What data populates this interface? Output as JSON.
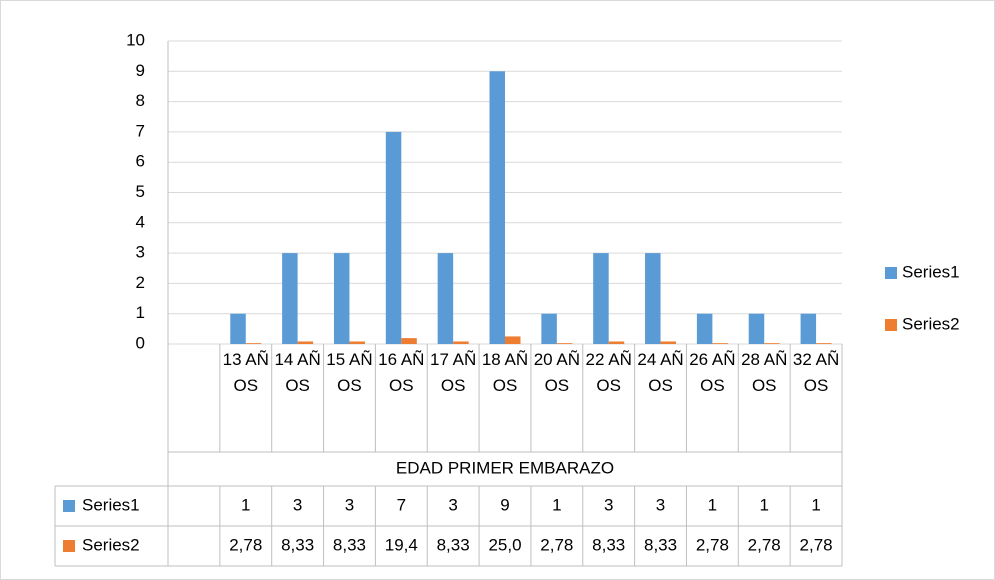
{
  "chart_data": {
    "type": "bar",
    "x_label": "EDAD PRIMER EMBARAZO",
    "categories": [
      null,
      "13 AÑOS",
      "14 AÑOS",
      "15 AÑOS",
      "16 AÑOS",
      "17 AÑOS",
      "18 AÑOS",
      "20 AÑOS",
      "22 AÑOS",
      "24 AÑOS",
      "26 AÑOS",
      "28 AÑOS",
      "32 AÑOS"
    ],
    "series": [
      {
        "name": "Series1",
        "color": "#5b9bd5",
        "values": [
          null,
          1,
          3,
          3,
          7,
          3,
          9,
          1,
          3,
          3,
          1,
          1,
          1
        ]
      },
      {
        "name": "Series2",
        "color": "#ed7d31",
        "values": [
          null,
          0.0278,
          0.0833,
          0.0833,
          0.194,
          0.0833,
          0.25,
          0.0278,
          0.0833,
          0.0833,
          0.0278,
          0.0278,
          0.0278
        ],
        "value_labels": [
          null,
          "2,78",
          "8,33",
          "8,33",
          "19,4",
          "8,33",
          "25,0",
          "2,78",
          "8,33",
          "8,33",
          "2,78",
          "2,78",
          "2,78"
        ]
      }
    ],
    "ylim": [
      0,
      10
    ],
    "yticks": [
      0,
      1,
      2,
      3,
      4,
      5,
      6,
      7,
      8,
      9,
      10
    ],
    "grid": true,
    "legend": "right",
    "data_table": true
  }
}
